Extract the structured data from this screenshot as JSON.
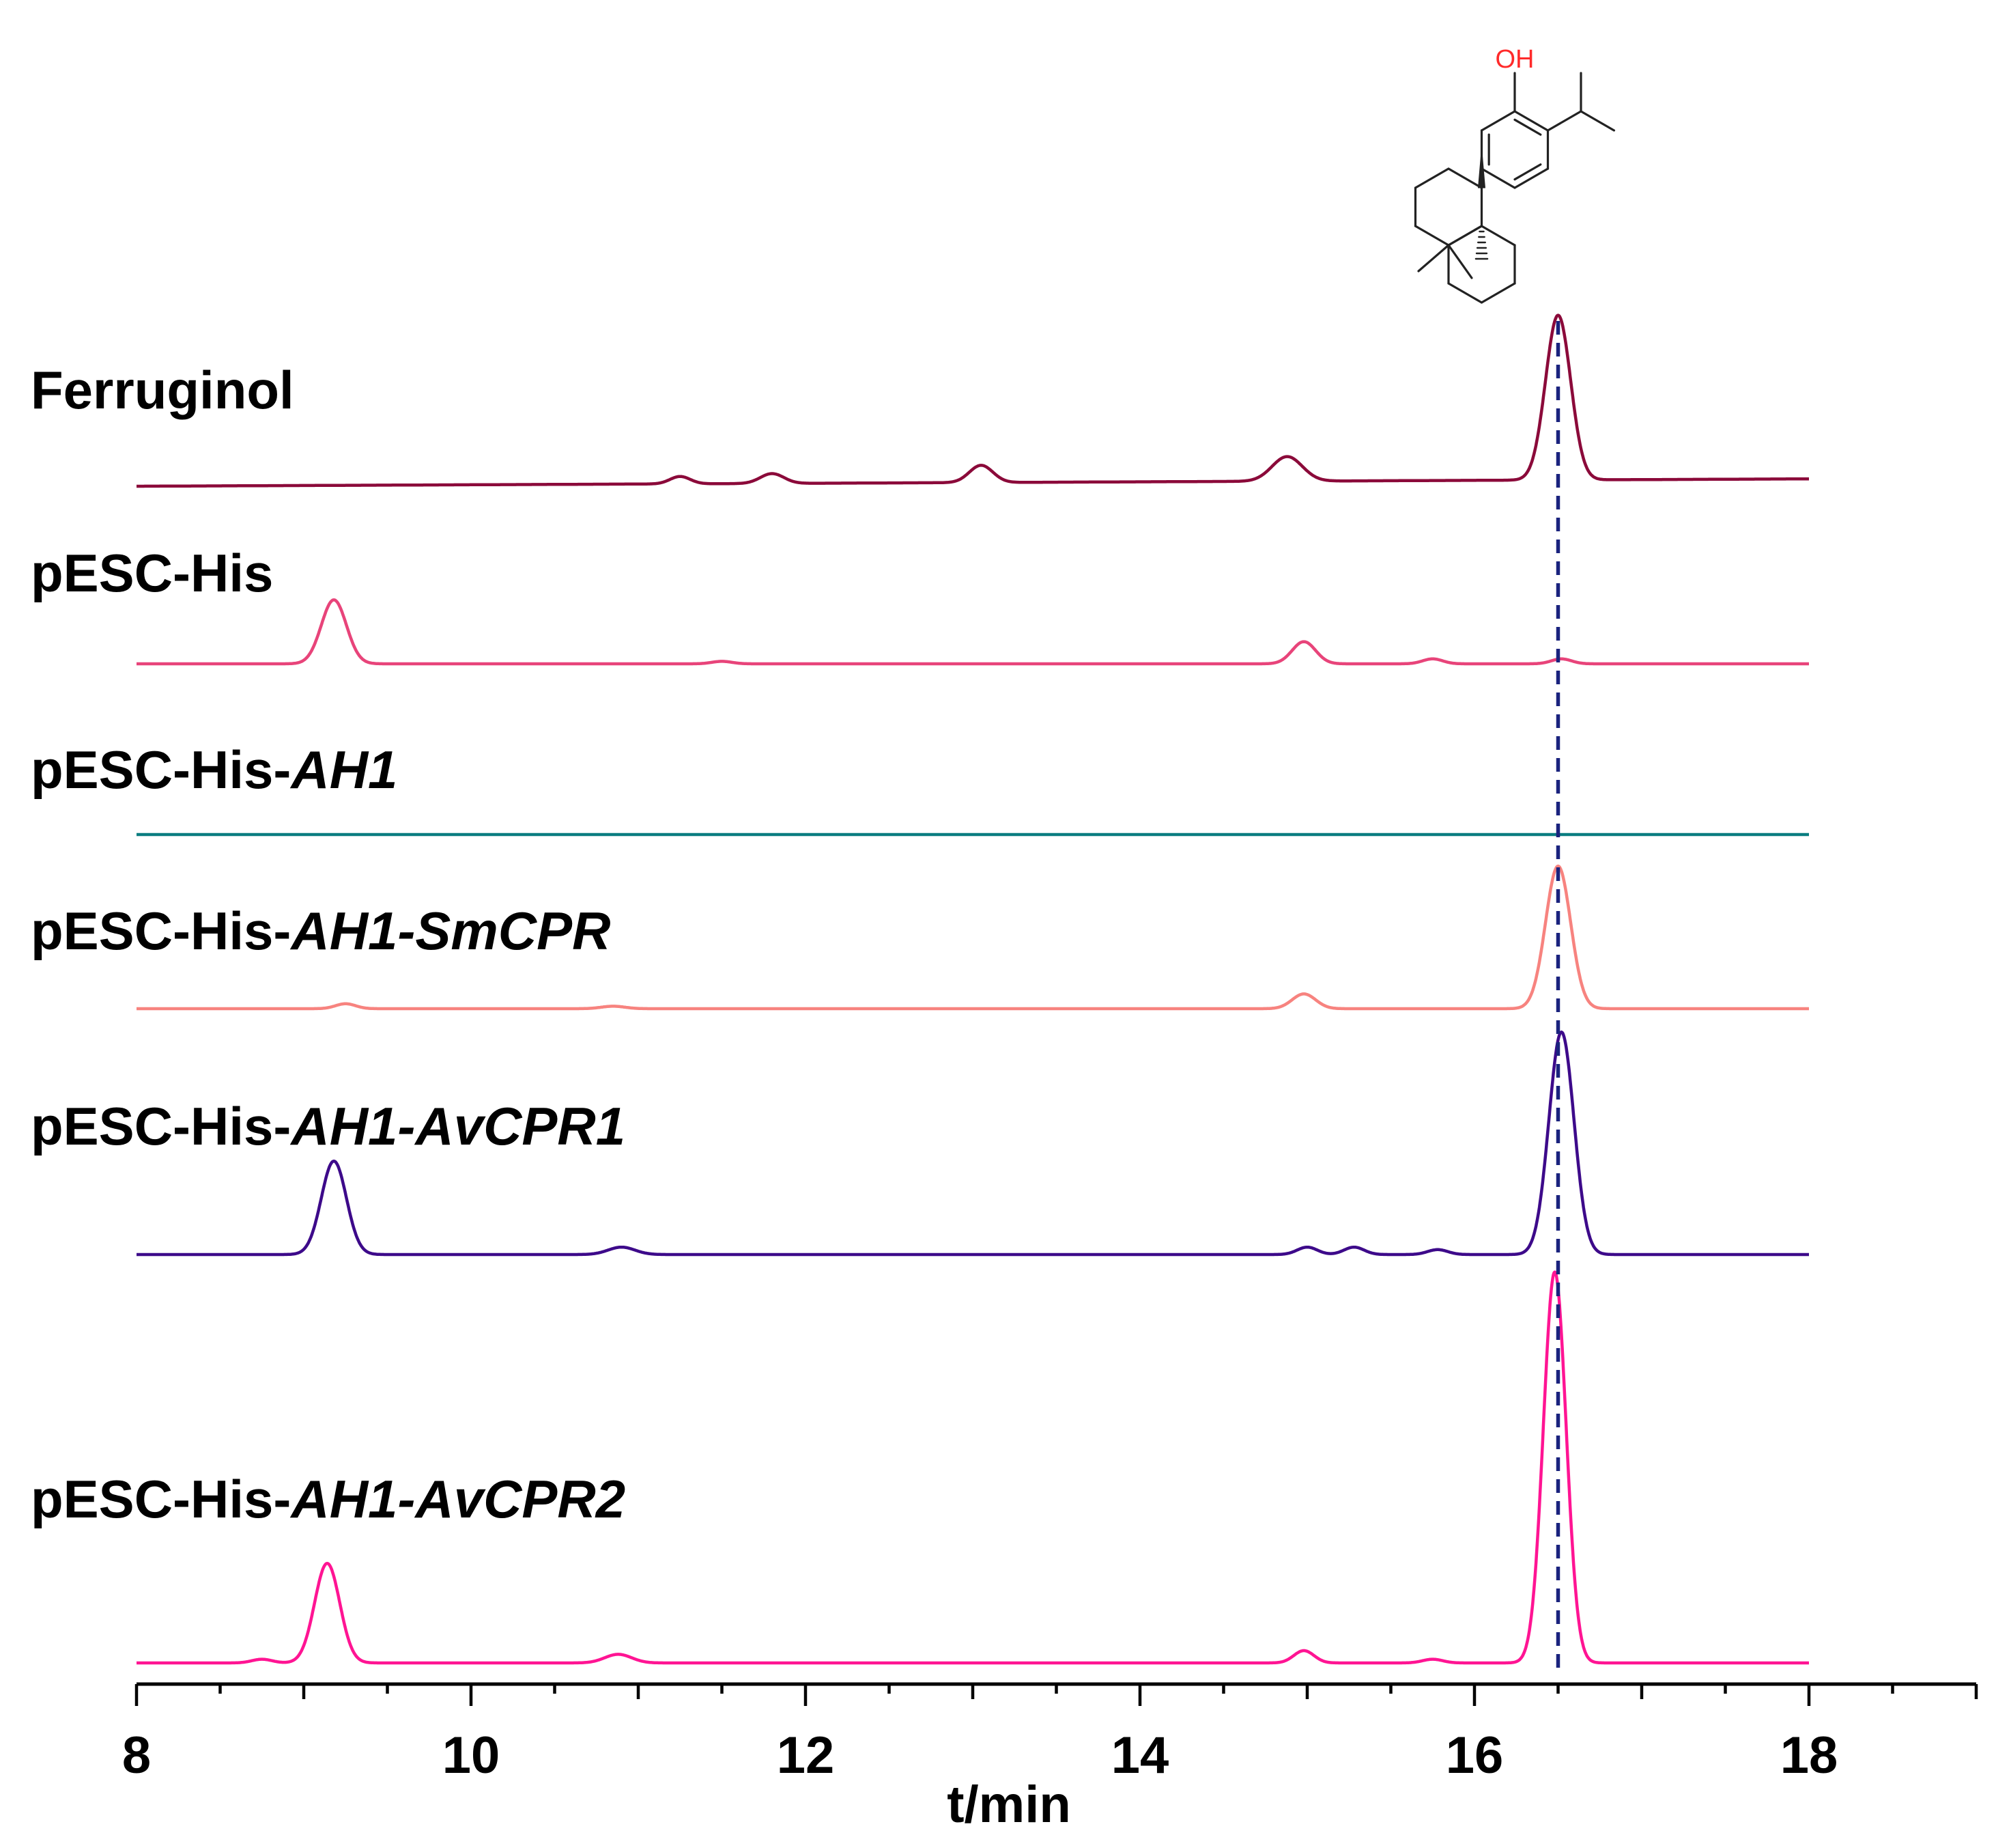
{
  "chart_data": {
    "type": "line",
    "title": "",
    "xlabel": "t/min",
    "ylabel": "",
    "xlim": [
      8,
      19
    ],
    "x_ticks": [
      "8",
      "10",
      "12",
      "14",
      "16",
      "18"
    ],
    "grid": false,
    "legend": "none",
    "reference_line": {
      "x": 16.5,
      "style": "dashed",
      "color": "#1a237e"
    },
    "structure": {
      "name_label": "OH",
      "depicts": "Ferruginol"
    },
    "series": [
      {
        "name": "Ferruginol",
        "label_parts": [
          {
            "text": "Ferruginol",
            "italic": false
          }
        ],
        "color": "#8b0a3a",
        "x_range": [
          8,
          18
        ],
        "baseline": 0.0,
        "drift": 0.06,
        "peaks": [
          {
            "x": 11.25,
            "height": 0.06,
            "width": 0.06
          },
          {
            "x": 11.8,
            "height": 0.08,
            "width": 0.07
          },
          {
            "x": 13.05,
            "height": 0.14,
            "width": 0.07
          },
          {
            "x": 14.88,
            "height": 0.2,
            "width": 0.09
          },
          {
            "x": 16.5,
            "height": 1.34,
            "width": 0.075
          }
        ]
      },
      {
        "name": "pESC-His",
        "label_parts": [
          {
            "text": "pESC-His",
            "italic": false
          }
        ],
        "color": "#e8447a",
        "x_range": [
          8,
          18
        ],
        "baseline": 0.0,
        "drift": 0.0,
        "peaks": [
          {
            "x": 9.18,
            "height": 0.52,
            "width": 0.075
          },
          {
            "x": 11.5,
            "height": 0.02,
            "width": 0.06
          },
          {
            "x": 14.98,
            "height": 0.18,
            "width": 0.07
          },
          {
            "x": 15.75,
            "height": 0.04,
            "width": 0.06
          },
          {
            "x": 16.52,
            "height": 0.04,
            "width": 0.06
          }
        ]
      },
      {
        "name": "pESC-His-AH1",
        "label_parts": [
          {
            "text": "pESC-His-",
            "italic": false
          },
          {
            "text": "AH1",
            "italic": true
          }
        ],
        "color": "#0a7d80",
        "x_range": [
          8,
          18
        ],
        "baseline": 0.0,
        "drift": 0.0,
        "peaks": []
      },
      {
        "name": "pESC-His-AH1-SmCPR",
        "label_parts": [
          {
            "text": "pESC-His-",
            "italic": false
          },
          {
            "text": "AH1-SmCPR",
            "italic": true
          }
        ],
        "color": "#f7837f",
        "x_range": [
          8,
          18
        ],
        "baseline": 0.0,
        "drift": 0.0,
        "peaks": [
          {
            "x": 9.25,
            "height": 0.04,
            "width": 0.06
          },
          {
            "x": 10.85,
            "height": 0.02,
            "width": 0.07
          },
          {
            "x": 14.98,
            "height": 0.12,
            "width": 0.07
          },
          {
            "x": 16.5,
            "height": 1.16,
            "width": 0.075
          }
        ]
      },
      {
        "name": "pESC-His-AH1-AvCPR1",
        "label_parts": [
          {
            "text": "pESC-His-",
            "italic": false
          },
          {
            "text": "AH1-AvCPR1",
            "italic": true
          }
        ],
        "color": "#3d0a8a",
        "x_range": [
          8,
          18
        ],
        "baseline": 0.0,
        "drift": 0.0,
        "peaks": [
          {
            "x": 9.18,
            "height": 0.76,
            "width": 0.075
          },
          {
            "x": 10.9,
            "height": 0.06,
            "width": 0.08
          },
          {
            "x": 15.0,
            "height": 0.06,
            "width": 0.06
          },
          {
            "x": 15.28,
            "height": 0.06,
            "width": 0.06
          },
          {
            "x": 15.78,
            "height": 0.04,
            "width": 0.06
          },
          {
            "x": 16.52,
            "height": 1.81,
            "width": 0.075
          }
        ]
      },
      {
        "name": "pESC-His-AH1-AvCPR2",
        "label_parts": [
          {
            "text": "pESC-His-",
            "italic": false
          },
          {
            "text": "AH1-AvCPR2",
            "italic": true
          }
        ],
        "color": "#ff1493",
        "x_range": [
          8,
          18
        ],
        "baseline": 0.0,
        "drift": 0.0,
        "peaks": [
          {
            "x": 8.75,
            "height": 0.03,
            "width": 0.06
          },
          {
            "x": 9.14,
            "height": 0.81,
            "width": 0.075
          },
          {
            "x": 10.88,
            "height": 0.07,
            "width": 0.08
          },
          {
            "x": 14.98,
            "height": 0.1,
            "width": 0.06
          },
          {
            "x": 15.75,
            "height": 0.03,
            "width": 0.06
          },
          {
            "x": 16.48,
            "height": 3.18,
            "width": 0.068
          }
        ]
      }
    ]
  }
}
